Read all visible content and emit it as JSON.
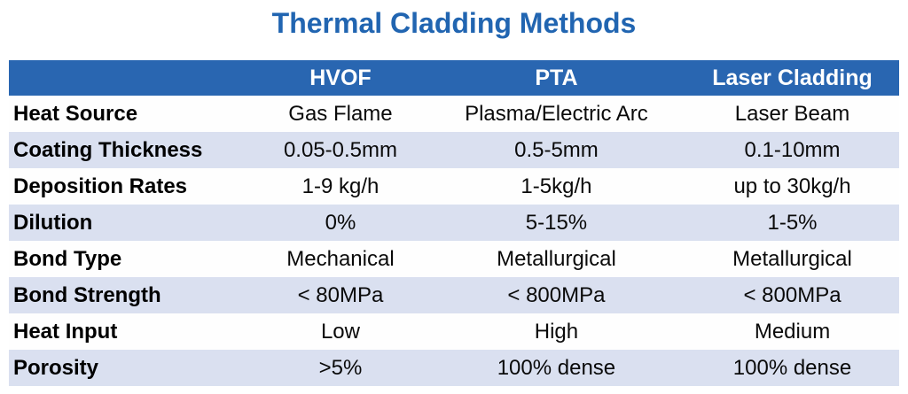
{
  "title": "Thermal Cladding Methods",
  "colors": {
    "title_text": "#2165B1",
    "header_bg": "#2966B1",
    "header_text": "#FFFFFF",
    "row_alt_bg": "#DAE0F0",
    "row_bg": "#FEFEFE",
    "body_text": "#0A0A0A"
  },
  "chart_data": {
    "type": "table",
    "title": "Thermal Cladding Methods",
    "columns": [
      "",
      "HVOF",
      "PTA",
      "Laser Cladding"
    ],
    "rows": [
      {
        "label": "Heat Source",
        "values": [
          "Gas Flame",
          "Plasma/Electric Arc",
          "Laser Beam"
        ]
      },
      {
        "label": "Coating Thickness",
        "values": [
          "0.05-0.5mm",
          "0.5-5mm",
          "0.1-10mm"
        ]
      },
      {
        "label": "Deposition Rates",
        "values": [
          "1-9 kg/h",
          "1-5kg/h",
          "up to 30kg/h"
        ]
      },
      {
        "label": "Dilution",
        "values": [
          "0%",
          "5-15%",
          "1-5%"
        ]
      },
      {
        "label": "Bond Type",
        "values": [
          "Mechanical",
          "Metallurgical",
          "Metallurgical"
        ]
      },
      {
        "label": "Bond Strength",
        "values": [
          "< 80MPa",
          "< 800MPa",
          "< 800MPa"
        ]
      },
      {
        "label": "Heat Input",
        "values": [
          "Low",
          "High",
          "Medium"
        ]
      },
      {
        "label": "Porosity",
        "values": [
          ">5%",
          "100% dense",
          "100% dense"
        ]
      }
    ]
  }
}
